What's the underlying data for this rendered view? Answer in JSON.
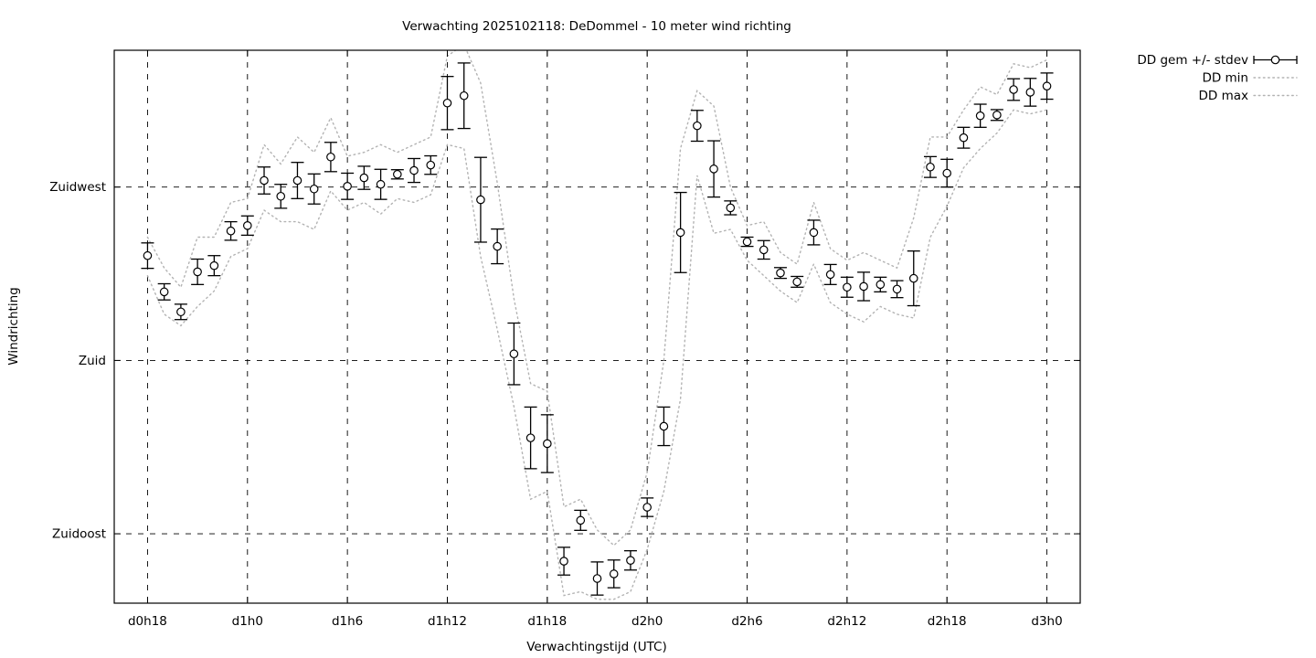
{
  "title": "Verwachting 2025102118: DeDommel - 10 meter wind richting",
  "colors": {
    "foreground": "#000000",
    "envelope": "#b3b3b3",
    "marker_fill": "#ffffff",
    "background": "#ffffff"
  },
  "legend": {
    "entries": [
      {
        "label": "DD gem +/- stdev",
        "sample": "errorbar"
      },
      {
        "label": "DD min",
        "sample": "dotted"
      },
      {
        "label": "DD max",
        "sample": "dotted"
      }
    ]
  },
  "chart_data": {
    "type": "line",
    "subtype": "errorbars-with-minmax-envelope",
    "title": "Verwachting 2025102118: DeDommel - 10 meter wind richting",
    "xlabel": "Verwachtingstijd (UTC)",
    "ylabel": "Windrichting",
    "grid": true,
    "legend_position": "outside-top-right",
    "x_tick_hours": [
      18,
      24,
      30,
      36,
      42,
      48,
      54,
      60,
      66,
      72
    ],
    "x_tick_labels": [
      "d0h18",
      "d1h0",
      "d1h6",
      "d1h12",
      "d1h18",
      "d2h0",
      "d2h6",
      "d2h12",
      "d2h18",
      "d3h0"
    ],
    "y_ticks": [
      {
        "label": "Zuidwest",
        "value": 225
      },
      {
        "label": "Zuid",
        "value": 180
      },
      {
        "label": "Zuidoost",
        "value": 135
      }
    ],
    "xlim_hours": [
      16,
      74
    ],
    "ylim_degrees": [
      117,
      260.5
    ],
    "x_hours": [
      18,
      19,
      20,
      21,
      22,
      23,
      24,
      25,
      26,
      27,
      28,
      29,
      30,
      31,
      32,
      33,
      34,
      35,
      36,
      37,
      38,
      39,
      40,
      41,
      42,
      43,
      44,
      45,
      46,
      47,
      48,
      49,
      50,
      51,
      52,
      53,
      54,
      55,
      56,
      57,
      58,
      59,
      60,
      61,
      62,
      63,
      64,
      65,
      66,
      67,
      68,
      69,
      70,
      71,
      72
    ],
    "series": [
      {
        "name": "DD gem",
        "unit": "degrees",
        "values": [
          207.2,
          197.8,
          192.6,
          203,
          204.6,
          213.6,
          215,
          226.7,
          222.6,
          226.7,
          224.5,
          232.8,
          225.2,
          227.4,
          225.7,
          228.3,
          229.3,
          230.7,
          246.8,
          248.7,
          221.7,
          209.6,
          181.7,
          159.9,
          158.4,
          127.9,
          138.5,
          123.4,
          124.6,
          128.1,
          141.9,
          162.9,
          213.2,
          240.9,
          229.7,
          219.6,
          210.8,
          208.7,
          202.7,
          200.4,
          213.2,
          202.3,
          199,
          199.2,
          199.7,
          198.5,
          201.3,
          230.2,
          228.6,
          237.8,
          243.5,
          243.7,
          250.3,
          249.6,
          251.2
        ]
      },
      {
        "name": "DD stdev",
        "unit": "degrees",
        "values": [
          3.3,
          2.1,
          2.0,
          3.3,
          2.6,
          2.4,
          2.5,
          3.5,
          3.1,
          4.7,
          3.9,
          3.8,
          3.4,
          3.0,
          3.9,
          1.2,
          3.1,
          2.4,
          6.9,
          8.5,
          11.0,
          4.5,
          8.0,
          8.0,
          7.5,
          3.6,
          2.6,
          4.3,
          3.6,
          2.5,
          2.4,
          5.0,
          10.4,
          4.0,
          7.3,
          1.8,
          1.2,
          2.4,
          1.4,
          1.4,
          3.2,
          2.6,
          2.6,
          3.7,
          1.9,
          2.2,
          7.1,
          2.7,
          3.6,
          2.7,
          3.0,
          1.4,
          2.8,
          3.6,
          3.4
        ]
      },
      {
        "name": "DD min",
        "unit": "degrees",
        "values": [
          202,
          192,
          189,
          194,
          198,
          207,
          209,
          219,
          216,
          216,
          214,
          224,
          219,
          221,
          218,
          222,
          221,
          223,
          236,
          235,
          207,
          188,
          168,
          144,
          146,
          119,
          120,
          118,
          118,
          120,
          131,
          146,
          170,
          228,
          213,
          214,
          206,
          202,
          198,
          195,
          205,
          195,
          192,
          190,
          194,
          192,
          191,
          212,
          220,
          230,
          235,
          239,
          245,
          244,
          245
        ]
      },
      {
        "name": "DD max",
        "unit": "degrees",
        "values": [
          212,
          204,
          199,
          212,
          212,
          221,
          222,
          236,
          231,
          238,
          234,
          243,
          233,
          234,
          236,
          234,
          236,
          238,
          259,
          262,
          252,
          226,
          196,
          174,
          172,
          142,
          144,
          136,
          132,
          136,
          151,
          180,
          235,
          250,
          246,
          225,
          215,
          216,
          208,
          205,
          221,
          209,
          206,
          208,
          206,
          204,
          217,
          238,
          238,
          245,
          251,
          249,
          257,
          256,
          258
        ]
      }
    ]
  }
}
